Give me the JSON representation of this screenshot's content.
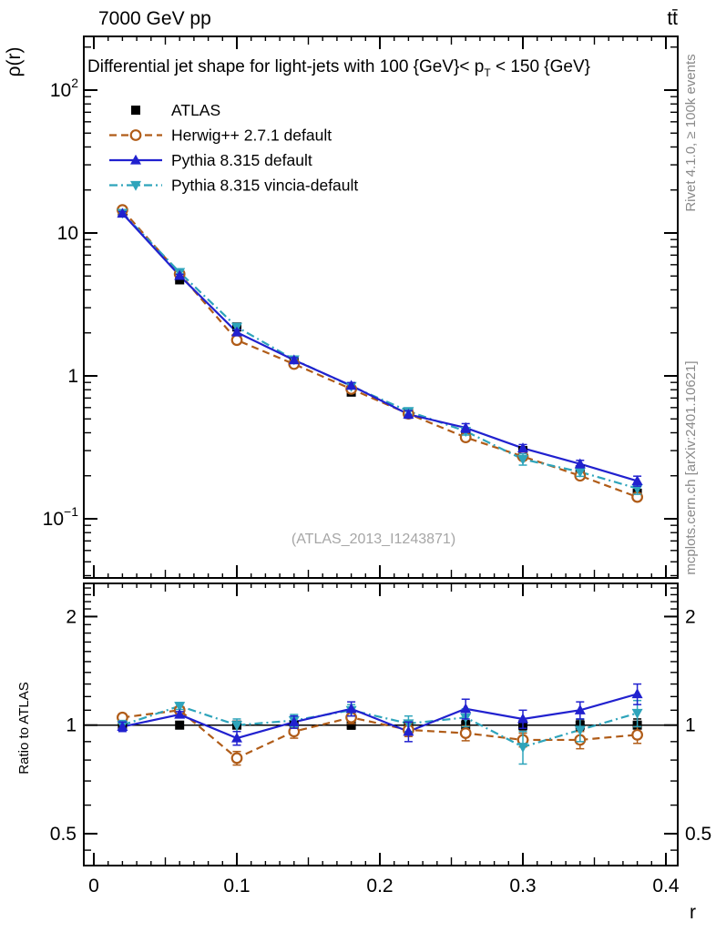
{
  "header": {
    "left": "7000 GeV pp",
    "right": "tt̄"
  },
  "side_notes": {
    "right_top": "Rivet 4.1.0, ≥ 100k events",
    "right_bottom": "mcplots.cern.ch [arXiv:2401.10621]"
  },
  "watermark": "(ATLAS_2013_I1243871)",
  "chart_data": {
    "type": "line",
    "title_pre": "Differential jet shape for light-jets with 100 {GeV}< p",
    "title_sub": "T",
    "title_post": " < 150 {GeV}",
    "xlabel": "r",
    "ylabel": "ρ(r)",
    "ratio_label": "Ratio to ATLAS",
    "x": [
      0.02,
      0.06,
      0.1,
      0.14,
      0.18,
      0.22,
      0.26,
      0.3,
      0.34,
      0.38
    ],
    "xlim": [
      0,
      0.408
    ],
    "ylim_main": [
      0.0385,
      239
    ],
    "ylim_ratio": [
      0.41,
      2.47
    ],
    "x_ticks": [
      {
        "v": 0,
        "label": "0"
      },
      {
        "v": 0.1,
        "label": "0.1"
      },
      {
        "v": 0.2,
        "label": "0.2"
      },
      {
        "v": 0.3,
        "label": "0.3"
      },
      {
        "v": 0.4,
        "label": "0.4"
      }
    ],
    "y_ticks_main": [
      {
        "v": 100,
        "base": "10",
        "exp": "2"
      },
      {
        "v": 10,
        "base": "10",
        "exp": ""
      },
      {
        "v": 1,
        "base": "1",
        "exp": ""
      },
      {
        "v": 0.1,
        "base": "10",
        "exp": "−1"
      }
    ],
    "y_ticks_ratio": [
      {
        "v": 2,
        "label": "2"
      },
      {
        "v": 1,
        "label": "1"
      },
      {
        "v": 0.5,
        "label": "0.5"
      }
    ],
    "series": [
      {
        "id": "atlas",
        "name": "ATLAS",
        "color": "#000000",
        "marker": "square",
        "line": "none",
        "values": [
          13.8,
          4.7,
          2.2,
          1.26,
          0.77,
          0.56,
          0.39,
          0.3,
          0.22,
          0.151
        ],
        "ratio": [
          1,
          1,
          1,
          1,
          1,
          1,
          1,
          1,
          1,
          1
        ],
        "ratio_err": [
          0.02,
          0.015,
          0.02,
          0.02,
          0.025,
          0.03,
          0.03,
          0.03,
          0.035,
          0.04
        ]
      },
      {
        "id": "herwig",
        "name": "Herwig++ 2.7.1 default",
        "color": "#b05c18",
        "marker": "circle",
        "line": "dashed",
        "values": [
          14.5,
          5.17,
          1.78,
          1.21,
          0.81,
          0.543,
          0.371,
          0.273,
          0.2,
          0.142
        ],
        "ratio": [
          1.05,
          1.1,
          0.81,
          0.96,
          1.05,
          0.97,
          0.95,
          0.91,
          0.91,
          0.94
        ],
        "ratio_err": [
          0.025,
          0.02,
          0.035,
          0.04,
          0.04,
          0.04,
          0.045,
          0.04,
          0.05,
          0.05
        ]
      },
      {
        "id": "pythia-default",
        "name": "Pythia 8.315 default",
        "color": "#2121cf",
        "marker": "triangle-up",
        "line": "solid",
        "values": [
          13.7,
          5.03,
          2.02,
          1.29,
          0.855,
          0.538,
          0.433,
          0.312,
          0.242,
          0.184
        ],
        "ratio": [
          0.99,
          1.07,
          0.92,
          1.02,
          1.11,
          0.96,
          1.11,
          1.04,
          1.1,
          1.22
        ],
        "ratio_err": [
          0.03,
          0.02,
          0.04,
          0.04,
          0.05,
          0.06,
          0.07,
          0.06,
          0.06,
          0.08
        ]
      },
      {
        "id": "pythia-vincia",
        "name": "Pythia 8.315 vincia-default",
        "color": "#2ea4bb",
        "marker": "triangle-down",
        "line": "dashdot",
        "values": [
          13.8,
          5.31,
          2.2,
          1.3,
          0.847,
          0.566,
          0.41,
          0.261,
          0.213,
          0.163
        ],
        "ratio": [
          1.0,
          1.13,
          1.0,
          1.03,
          1.1,
          1.01,
          1.05,
          0.87,
          0.97,
          1.08
        ],
        "ratio_err": [
          0.03,
          0.025,
          0.04,
          0.04,
          0.04,
          0.05,
          0.06,
          0.09,
          0.07,
          0.09
        ]
      }
    ]
  }
}
